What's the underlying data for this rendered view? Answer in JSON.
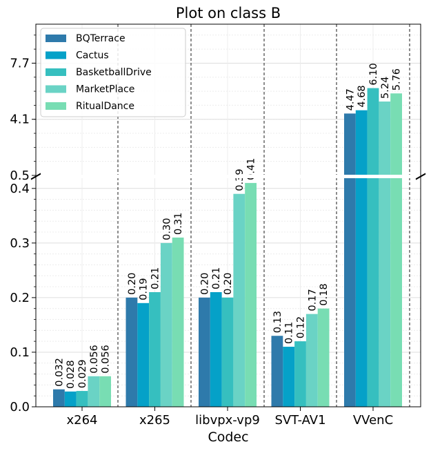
{
  "chart_data": {
    "type": "bar",
    "title": "Plot on class B",
    "xlabel": "Codec",
    "ylabel": "",
    "categories": [
      "x264",
      "x265",
      "libvpx-vp9",
      "SVT-AV1",
      "VVenC"
    ],
    "series": [
      {
        "name": "BQTerrace",
        "color": "#2e7aab",
        "values": [
          0.032,
          0.2,
          0.2,
          0.13,
          4.47
        ],
        "labels": [
          "0.032",
          "0.20",
          "0.20",
          "0.13",
          "4.47"
        ]
      },
      {
        "name": "Cactus",
        "color": "#05a1c8",
        "values": [
          0.028,
          0.19,
          0.21,
          0.11,
          4.68
        ],
        "labels": [
          "0.028",
          "0.19",
          "0.21",
          "0.11",
          "4.68"
        ]
      },
      {
        "name": "BasketballDrive",
        "color": "#36bfbf",
        "values": [
          0.029,
          0.21,
          0.2,
          0.12,
          6.1
        ],
        "labels": [
          "0.029",
          "0.21",
          "0.20",
          "0.12",
          "6.10"
        ]
      },
      {
        "name": "MarketPlace",
        "color": "#6ad3c5",
        "values": [
          0.056,
          0.3,
          0.39,
          0.17,
          5.24
        ],
        "labels": [
          "0.056",
          "0.30",
          "0.39",
          "0.17",
          "5.24"
        ]
      },
      {
        "name": "RitualDance",
        "color": "#78ddb3",
        "values": [
          0.056,
          0.31,
          0.41,
          0.18,
          5.76
        ],
        "labels": [
          "0.056",
          "0.31",
          "0.41",
          "0.18",
          "5.76"
        ]
      }
    ],
    "axes": {
      "lower": {
        "ylim": [
          0,
          0.42
        ],
        "ticks": [
          "0.0",
          "0.1",
          "0.2",
          "0.3",
          "0.4"
        ]
      },
      "upper": {
        "ylim": [
          0.5,
          10.2
        ],
        "ticks": [
          "0.5",
          "4.1",
          "7.7"
        ]
      }
    },
    "broken_axis": true,
    "grid": true,
    "legend": "top-left"
  }
}
